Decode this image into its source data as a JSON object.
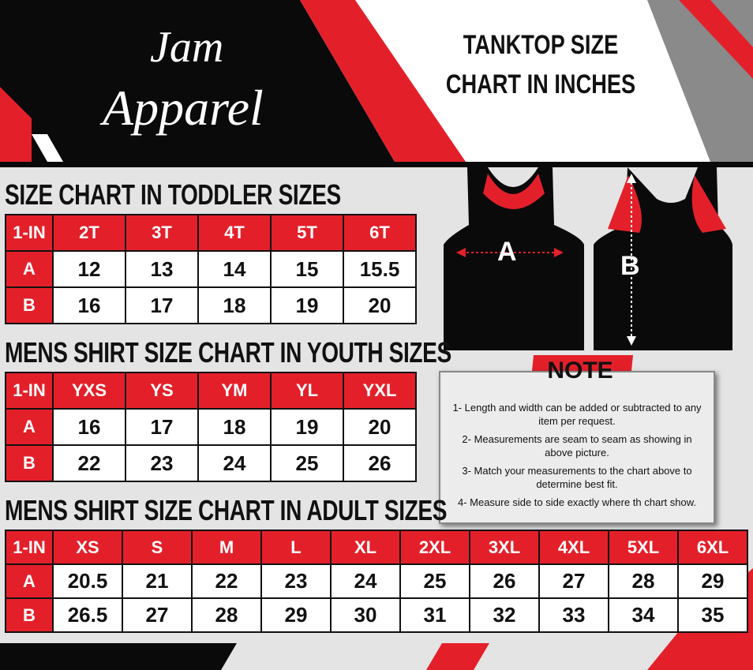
{
  "brand": {
    "line1": "Jam",
    "line2": "Apparel"
  },
  "header": {
    "title_line1": "TANKTOP  SIZE",
    "title_line2": "CHART IN INCHES"
  },
  "tables": [
    {
      "title": "SIZE CHART IN TODDLER  SIZES",
      "corner": "1-IN",
      "columns": [
        "2T",
        "3T",
        "4T",
        "5T",
        "6T"
      ],
      "rows": [
        {
          "label": "A",
          "values": [
            12,
            13,
            14,
            15,
            15.5
          ]
        },
        {
          "label": "B",
          "values": [
            16,
            17,
            18,
            19,
            20
          ]
        }
      ]
    },
    {
      "title": "MENS SHIRT SIZE CHART IN YOUTH  SIZES",
      "corner": "1-IN",
      "columns": [
        "YXS",
        "YS",
        "YM",
        "YL",
        "YXL"
      ],
      "rows": [
        {
          "label": "A",
          "values": [
            16,
            17,
            18,
            19,
            20
          ]
        },
        {
          "label": "B",
          "values": [
            22,
            23,
            24,
            25,
            26
          ]
        }
      ]
    },
    {
      "title": "MENS SHIRT SIZE CHART IN ADULT SIZES",
      "corner": "1-IN",
      "columns": [
        "XS",
        "S",
        "M",
        "L",
        "XL",
        "2XL",
        "3XL",
        "4XL",
        "5XL",
        "6XL"
      ],
      "rows": [
        {
          "label": "A",
          "values": [
            20.5,
            21,
            22,
            23,
            24,
            25,
            26,
            27,
            28,
            29
          ]
        },
        {
          "label": "B",
          "values": [
            26.5,
            27,
            28,
            29,
            30,
            31,
            32,
            33,
            34,
            35
          ]
        }
      ]
    }
  ],
  "diagram": {
    "label_a": "A",
    "label_b": "B"
  },
  "note": {
    "title": "NOTE",
    "items": [
      "1- Length and width can be added or subtracted to any item per request.",
      "2- Measurements are seam to seam  as showing in above picture.",
      "3- Match your measurements to the chart above to determine best fit.",
      "4- Measure side to side exactly where th chart show."
    ]
  }
}
